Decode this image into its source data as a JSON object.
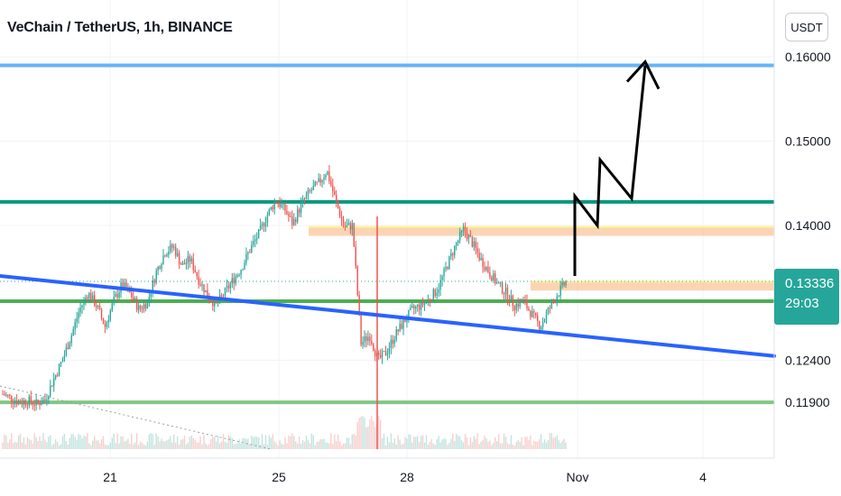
{
  "header": {
    "title": "VeChain / TetherUS, 1h, BINANCE"
  },
  "toolbar": {
    "currency_label": "USDT"
  },
  "price_tag": {
    "price": "0.13336",
    "countdown": "29:03"
  },
  "chart_data": {
    "type": "candlestick",
    "title": "VeChain / TetherUS, 1h, BINANCE",
    "y_ticks": [
      "0.16000",
      "0.15000",
      "0.14000",
      "0.12400",
      "0.11900"
    ],
    "x_ticks": [
      "21",
      "25",
      "28",
      "Nov",
      "4"
    ],
    "last_price": 0.13336,
    "colors": {
      "up": "#26a69a",
      "down": "#ef5350",
      "trendline": "#2962ff",
      "resistance": "#089981",
      "support": "#4caf50",
      "top_line": "#64b5f6",
      "zone": "#f9c59a",
      "arrow": "#000000"
    },
    "horizontal_lines": [
      {
        "price": 0.159,
        "color": "#64b5f6"
      },
      {
        "price": 0.1428,
        "color": "#089981"
      },
      {
        "price": 0.131,
        "color": "#4caf50"
      },
      {
        "price": 0.119,
        "color": "#81c784"
      }
    ],
    "zones": [
      {
        "price": 0.1393
      },
      {
        "price": 0.1328
      }
    ],
    "trendline": {
      "from_price": 0.134,
      "to_price": 0.1245
    },
    "projection_prices": [
      0.134,
      0.1435,
      0.14,
      0.1478,
      0.1432,
      0.159
    ],
    "price_path": [
      0.12,
      0.1195,
      0.119,
      0.1192,
      0.1188,
      0.1194,
      0.1218,
      0.124,
      0.1268,
      0.13,
      0.132,
      0.1305,
      0.128,
      0.131,
      0.133,
      0.1318,
      0.13,
      0.131,
      0.1345,
      0.1368,
      0.1375,
      0.1352,
      0.136,
      0.1335,
      0.1318,
      0.1305,
      0.132,
      0.1335,
      0.135,
      0.1372,
      0.139,
      0.1412,
      0.143,
      0.142,
      0.1402,
      0.1425,
      0.144,
      0.145,
      0.1465,
      0.143,
      0.1398,
      0.14,
      0.126,
      0.127,
      0.124,
      0.125,
      0.127,
      0.1285,
      0.13,
      0.1305,
      0.1312,
      0.1325,
      0.135,
      0.1375,
      0.1395,
      0.138,
      0.136,
      0.1345,
      0.133,
      0.132,
      0.1305,
      0.131,
      0.1295,
      0.128,
      0.13,
      0.1318,
      0.1333
    ]
  }
}
